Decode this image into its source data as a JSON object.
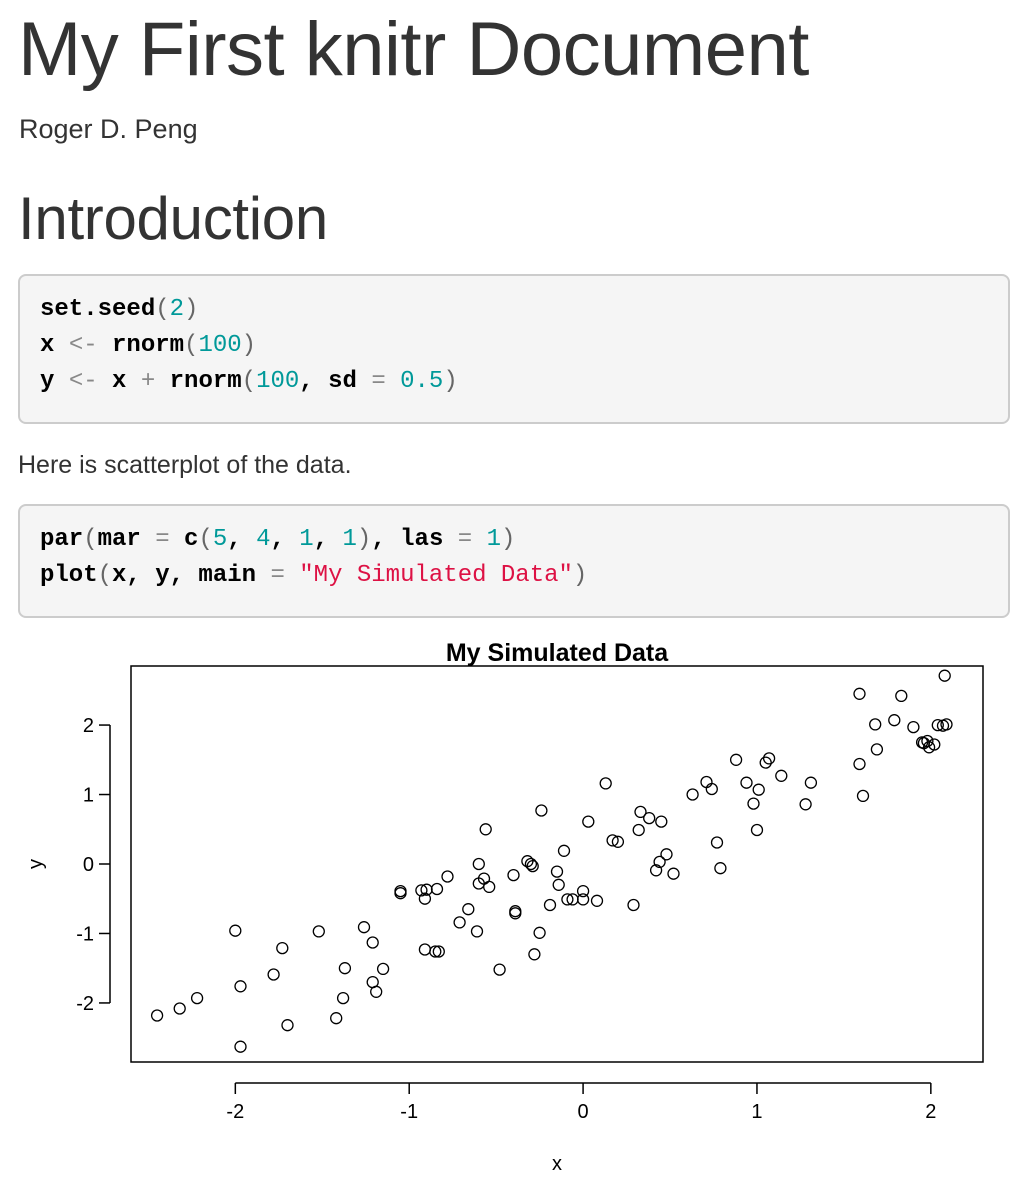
{
  "document": {
    "title": "My First knitr Document",
    "author": "Roger D. Peng"
  },
  "section": {
    "heading": "Introduction"
  },
  "code_block_1": {
    "lines": [
      [
        {
          "t": "set.seed",
          "c": "id"
        },
        {
          "t": "(",
          "c": "pn"
        },
        {
          "t": "2",
          "c": "num"
        },
        {
          "t": ")",
          "c": "pn"
        }
      ],
      [
        {
          "t": "x ",
          "c": "id"
        },
        {
          "t": "<-",
          "c": "op"
        },
        {
          "t": " rnorm",
          "c": "id"
        },
        {
          "t": "(",
          "c": "pn"
        },
        {
          "t": "100",
          "c": "num"
        },
        {
          "t": ")",
          "c": "pn"
        }
      ],
      [
        {
          "t": "y ",
          "c": "id"
        },
        {
          "t": "<-",
          "c": "op"
        },
        {
          "t": " x ",
          "c": "id"
        },
        {
          "t": "+",
          "c": "op"
        },
        {
          "t": " rnorm",
          "c": "id"
        },
        {
          "t": "(",
          "c": "pn"
        },
        {
          "t": "100",
          "c": "num"
        },
        {
          "t": ", sd ",
          "c": "id"
        },
        {
          "t": "=",
          "c": "op"
        },
        {
          "t": " ",
          "c": "id"
        },
        {
          "t": "0.5",
          "c": "num"
        },
        {
          "t": ")",
          "c": "pn"
        }
      ]
    ]
  },
  "paragraph": "Here is scatterplot of the data.",
  "code_block_2": {
    "lines": [
      [
        {
          "t": "par",
          "c": "id"
        },
        {
          "t": "(",
          "c": "pn"
        },
        {
          "t": "mar ",
          "c": "id"
        },
        {
          "t": "=",
          "c": "op"
        },
        {
          "t": " c",
          "c": "id"
        },
        {
          "t": "(",
          "c": "pn"
        },
        {
          "t": "5",
          "c": "num"
        },
        {
          "t": ", ",
          "c": "id"
        },
        {
          "t": "4",
          "c": "num"
        },
        {
          "t": ", ",
          "c": "id"
        },
        {
          "t": "1",
          "c": "num"
        },
        {
          "t": ", ",
          "c": "id"
        },
        {
          "t": "1",
          "c": "num"
        },
        {
          "t": ")",
          "c": "pn"
        },
        {
          "t": ", las ",
          "c": "id"
        },
        {
          "t": "=",
          "c": "op"
        },
        {
          "t": " ",
          "c": "id"
        },
        {
          "t": "1",
          "c": "num"
        },
        {
          "t": ")",
          "c": "pn"
        }
      ],
      [
        {
          "t": "plot",
          "c": "id"
        },
        {
          "t": "(",
          "c": "pn"
        },
        {
          "t": "x, y, main ",
          "c": "id"
        },
        {
          "t": "=",
          "c": "op"
        },
        {
          "t": " ",
          "c": "id"
        },
        {
          "t": "\"My Simulated Data\"",
          "c": "str"
        },
        {
          "t": ")",
          "c": "pn"
        }
      ]
    ]
  },
  "chart_data": {
    "type": "scatter",
    "title": "My Simulated Data",
    "xlabel": "x",
    "ylabel": "y",
    "xlim": [
      -2.6,
      2.3
    ],
    "ylim": [
      -2.85,
      2.85
    ],
    "x_ticks": [
      -2,
      -1,
      0,
      1,
      2
    ],
    "y_ticks": [
      -2,
      -1,
      0,
      1,
      2
    ],
    "x_tick_labels": [
      "-2",
      "-1",
      "0",
      "1",
      "2"
    ],
    "y_tick_labels": [
      "-2",
      "-1",
      "0",
      "1",
      "2"
    ],
    "grid": false,
    "marker": "open-circle",
    "points": [
      [
        -2.45,
        -2.18
      ],
      [
        -2.32,
        -2.08
      ],
      [
        -2.22,
        -1.93
      ],
      [
        -2.0,
        -0.96
      ],
      [
        -1.97,
        -1.76
      ],
      [
        -1.97,
        -2.63
      ],
      [
        -1.78,
        -1.59
      ],
      [
        -1.73,
        -1.21
      ],
      [
        -1.7,
        -2.32
      ],
      [
        -1.52,
        -0.97
      ],
      [
        -1.42,
        -2.22
      ],
      [
        -1.38,
        -1.93
      ],
      [
        -1.37,
        -1.5
      ],
      [
        -1.26,
        -0.91
      ],
      [
        -1.21,
        -1.13
      ],
      [
        -1.21,
        -1.7
      ],
      [
        -1.19,
        -1.84
      ],
      [
        -1.15,
        -1.51
      ],
      [
        -1.05,
        -0.39
      ],
      [
        -1.05,
        -0.42
      ],
      [
        -0.93,
        -0.38
      ],
      [
        -0.91,
        -0.5
      ],
      [
        -0.91,
        -1.23
      ],
      [
        -0.9,
        -0.37
      ],
      [
        -0.85,
        -1.26
      ],
      [
        -0.84,
        -0.36
      ],
      [
        -0.83,
        -1.26
      ],
      [
        -0.78,
        -0.18
      ],
      [
        -0.71,
        -0.84
      ],
      [
        -0.66,
        -0.65
      ],
      [
        -0.61,
        -0.97
      ],
      [
        -0.6,
        0.0
      ],
      [
        -0.6,
        -0.28
      ],
      [
        -0.57,
        -0.21
      ],
      [
        -0.56,
        0.5
      ],
      [
        -0.54,
        -0.33
      ],
      [
        -0.48,
        -1.52
      ],
      [
        -0.4,
        -0.16
      ],
      [
        -0.39,
        -0.68
      ],
      [
        -0.39,
        -0.71
      ],
      [
        -0.32,
        0.04
      ],
      [
        -0.3,
        0.0
      ],
      [
        -0.29,
        -0.03
      ],
      [
        -0.28,
        -1.3
      ],
      [
        -0.25,
        -0.99
      ],
      [
        -0.24,
        0.77
      ],
      [
        -0.19,
        -0.59
      ],
      [
        -0.15,
        -0.11
      ],
      [
        -0.14,
        -0.3
      ],
      [
        -0.11,
        0.19
      ],
      [
        -0.09,
        -0.51
      ],
      [
        -0.06,
        -0.51
      ],
      [
        0.0,
        -0.51
      ],
      [
        0.0,
        -0.39
      ],
      [
        0.03,
        0.61
      ],
      [
        0.08,
        -0.53
      ],
      [
        0.13,
        1.16
      ],
      [
        0.17,
        0.34
      ],
      [
        0.2,
        0.32
      ],
      [
        0.29,
        -0.59
      ],
      [
        0.32,
        0.49
      ],
      [
        0.33,
        0.75
      ],
      [
        0.38,
        0.66
      ],
      [
        0.42,
        -0.09
      ],
      [
        0.44,
        0.03
      ],
      [
        0.45,
        0.61
      ],
      [
        0.48,
        0.14
      ],
      [
        0.52,
        -0.14
      ],
      [
        0.63,
        1.0
      ],
      [
        0.71,
        1.18
      ],
      [
        0.74,
        1.08
      ],
      [
        0.77,
        0.31
      ],
      [
        0.79,
        -0.06
      ],
      [
        0.88,
        1.5
      ],
      [
        0.94,
        1.17
      ],
      [
        0.98,
        0.87
      ],
      [
        1.0,
        0.49
      ],
      [
        1.01,
        1.07
      ],
      [
        1.05,
        1.46
      ],
      [
        1.07,
        1.52
      ],
      [
        1.14,
        1.27
      ],
      [
        1.28,
        0.86
      ],
      [
        1.31,
        1.17
      ],
      [
        1.59,
        2.45
      ],
      [
        1.59,
        1.44
      ],
      [
        1.61,
        0.98
      ],
      [
        1.68,
        2.01
      ],
      [
        1.69,
        1.65
      ],
      [
        1.79,
        2.07
      ],
      [
        1.83,
        2.42
      ],
      [
        1.9,
        1.97
      ],
      [
        1.95,
        1.75
      ],
      [
        1.96,
        1.74
      ],
      [
        1.98,
        1.77
      ],
      [
        1.99,
        1.68
      ],
      [
        2.02,
        1.72
      ],
      [
        2.04,
        2.0
      ],
      [
        2.07,
        1.99
      ],
      [
        2.08,
        2.71
      ],
      [
        2.09,
        2.01
      ]
    ]
  }
}
